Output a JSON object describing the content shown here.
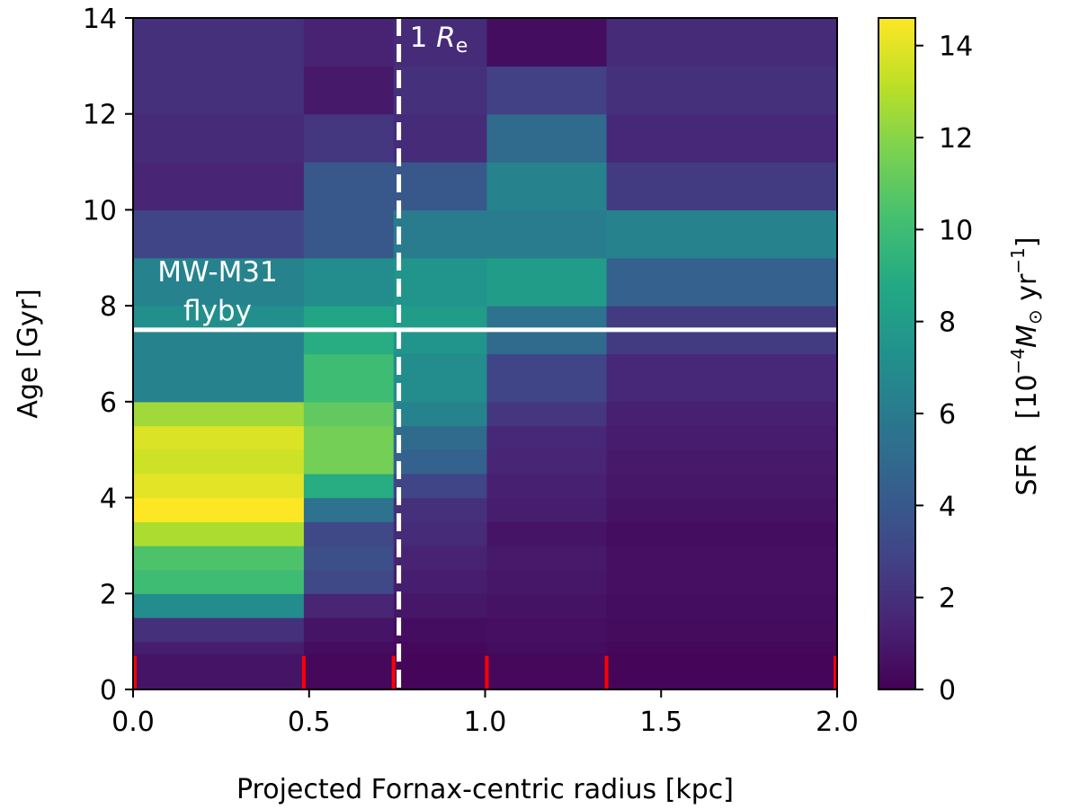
{
  "chart_data": {
    "type": "heatmap",
    "xlabel": "Projected Fornax-centric radius [kpc]",
    "ylabel": "Age [Gyr]",
    "colorbar_label": "SFR",
    "colorbar_units_prefix": "[10",
    "colorbar_units_exp1": "−4",
    "colorbar_units_msun": "M",
    "colorbar_units_sun": "⊙",
    "colorbar_units_yr": " yr",
    "colorbar_units_exp2": "−1",
    "colorbar_units_suffix": "]",
    "colormap": "viridis",
    "xlim": [
      0,
      2.0
    ],
    "ylim": [
      0,
      14
    ],
    "clim": [
      0,
      14.6
    ],
    "x_ticks": [
      0.0,
      0.5,
      1.0,
      1.5,
      2.0
    ],
    "x_tick_labels": [
      "0.0",
      "0.5",
      "1.0",
      "1.5",
      "2.0"
    ],
    "y_ticks": [
      0,
      2,
      4,
      6,
      8,
      10,
      12,
      14
    ],
    "y_tick_labels": [
      "0",
      "2",
      "4",
      "6",
      "8",
      "10",
      "12",
      "14"
    ],
    "colorbar_ticks": [
      0,
      2,
      4,
      6,
      8,
      10,
      12,
      14
    ],
    "colorbar_tick_labels": [
      "0",
      "2",
      "4",
      "6",
      "8",
      "10",
      "12",
      "14"
    ],
    "radial_bin_edges": [
      0,
      0.485,
      0.74,
      1.005,
      1.345,
      2.0
    ],
    "age_bin_edges": [
      0,
      0.25,
      0.5,
      0.75,
      1.0,
      1.5,
      2.0,
      2.5,
      3.0,
      3.5,
      4.0,
      4.5,
      5.0,
      5.5,
      6.0,
      7.0,
      7.5,
      8.0,
      9.0,
      10.0,
      11.0,
      12.0,
      13.0,
      14.0
    ],
    "sfr_values": [
      [
        0.8,
        0.3,
        0.2,
        0.3,
        0.2
      ],
      [
        0.8,
        0.3,
        0.2,
        0.3,
        0.2
      ],
      [
        0.8,
        0.3,
        0.2,
        0.3,
        0.2
      ],
      [
        1.2,
        0.5,
        0.3,
        0.5,
        0.3
      ],
      [
        2.0,
        0.8,
        0.5,
        0.6,
        0.4
      ],
      [
        7.0,
        1.5,
        0.9,
        0.7,
        0.5
      ],
      [
        10.0,
        3.2,
        1.2,
        0.9,
        0.6
      ],
      [
        10.5,
        3.5,
        1.4,
        1.0,
        0.6
      ],
      [
        12.8,
        3.2,
        1.8,
        0.8,
        0.5
      ],
      [
        14.6,
        5.5,
        2.0,
        1.2,
        0.7
      ],
      [
        14.0,
        9.0,
        3.0,
        1.3,
        0.9
      ],
      [
        13.5,
        11.5,
        4.5,
        1.5,
        1.0
      ],
      [
        13.8,
        11.5,
        5.0,
        1.6,
        1.1
      ],
      [
        12.5,
        11.0,
        6.5,
        2.3,
        1.3
      ],
      [
        6.5,
        10.0,
        7.0,
        3.0,
        1.6
      ],
      [
        6.5,
        9.0,
        7.5,
        5.0,
        2.5
      ],
      [
        7.2,
        8.6,
        8.0,
        5.5,
        2.5
      ],
      [
        6.5,
        7.0,
        7.5,
        8.0,
        4.5
      ],
      [
        3.0,
        4.0,
        6.0,
        6.0,
        6.5
      ],
      [
        1.5,
        4.0,
        4.0,
        6.5,
        2.5
      ],
      [
        1.8,
        2.3,
        1.8,
        5.0,
        1.6
      ],
      [
        2.0,
        1.0,
        2.0,
        2.8,
        2.0
      ],
      [
        2.0,
        1.4,
        1.8,
        0.5,
        1.8
      ]
    ],
    "vertical_line": {
      "x": 0.755,
      "style": "dashed",
      "color": "#ffffff",
      "label_prefix": "1 ",
      "label_R": "R",
      "label_sub": "e"
    },
    "horizontal_line": {
      "y": 7.5,
      "style": "solid",
      "color": "#ffffff",
      "label_line1": "MW-M31",
      "label_line2": "flyby"
    },
    "red_markers": {
      "x": [
        0.005,
        0.485,
        0.74,
        1.005,
        1.345,
        1.995
      ],
      "y_top": 0.7,
      "color": "#ff0000"
    },
    "grid": false
  }
}
